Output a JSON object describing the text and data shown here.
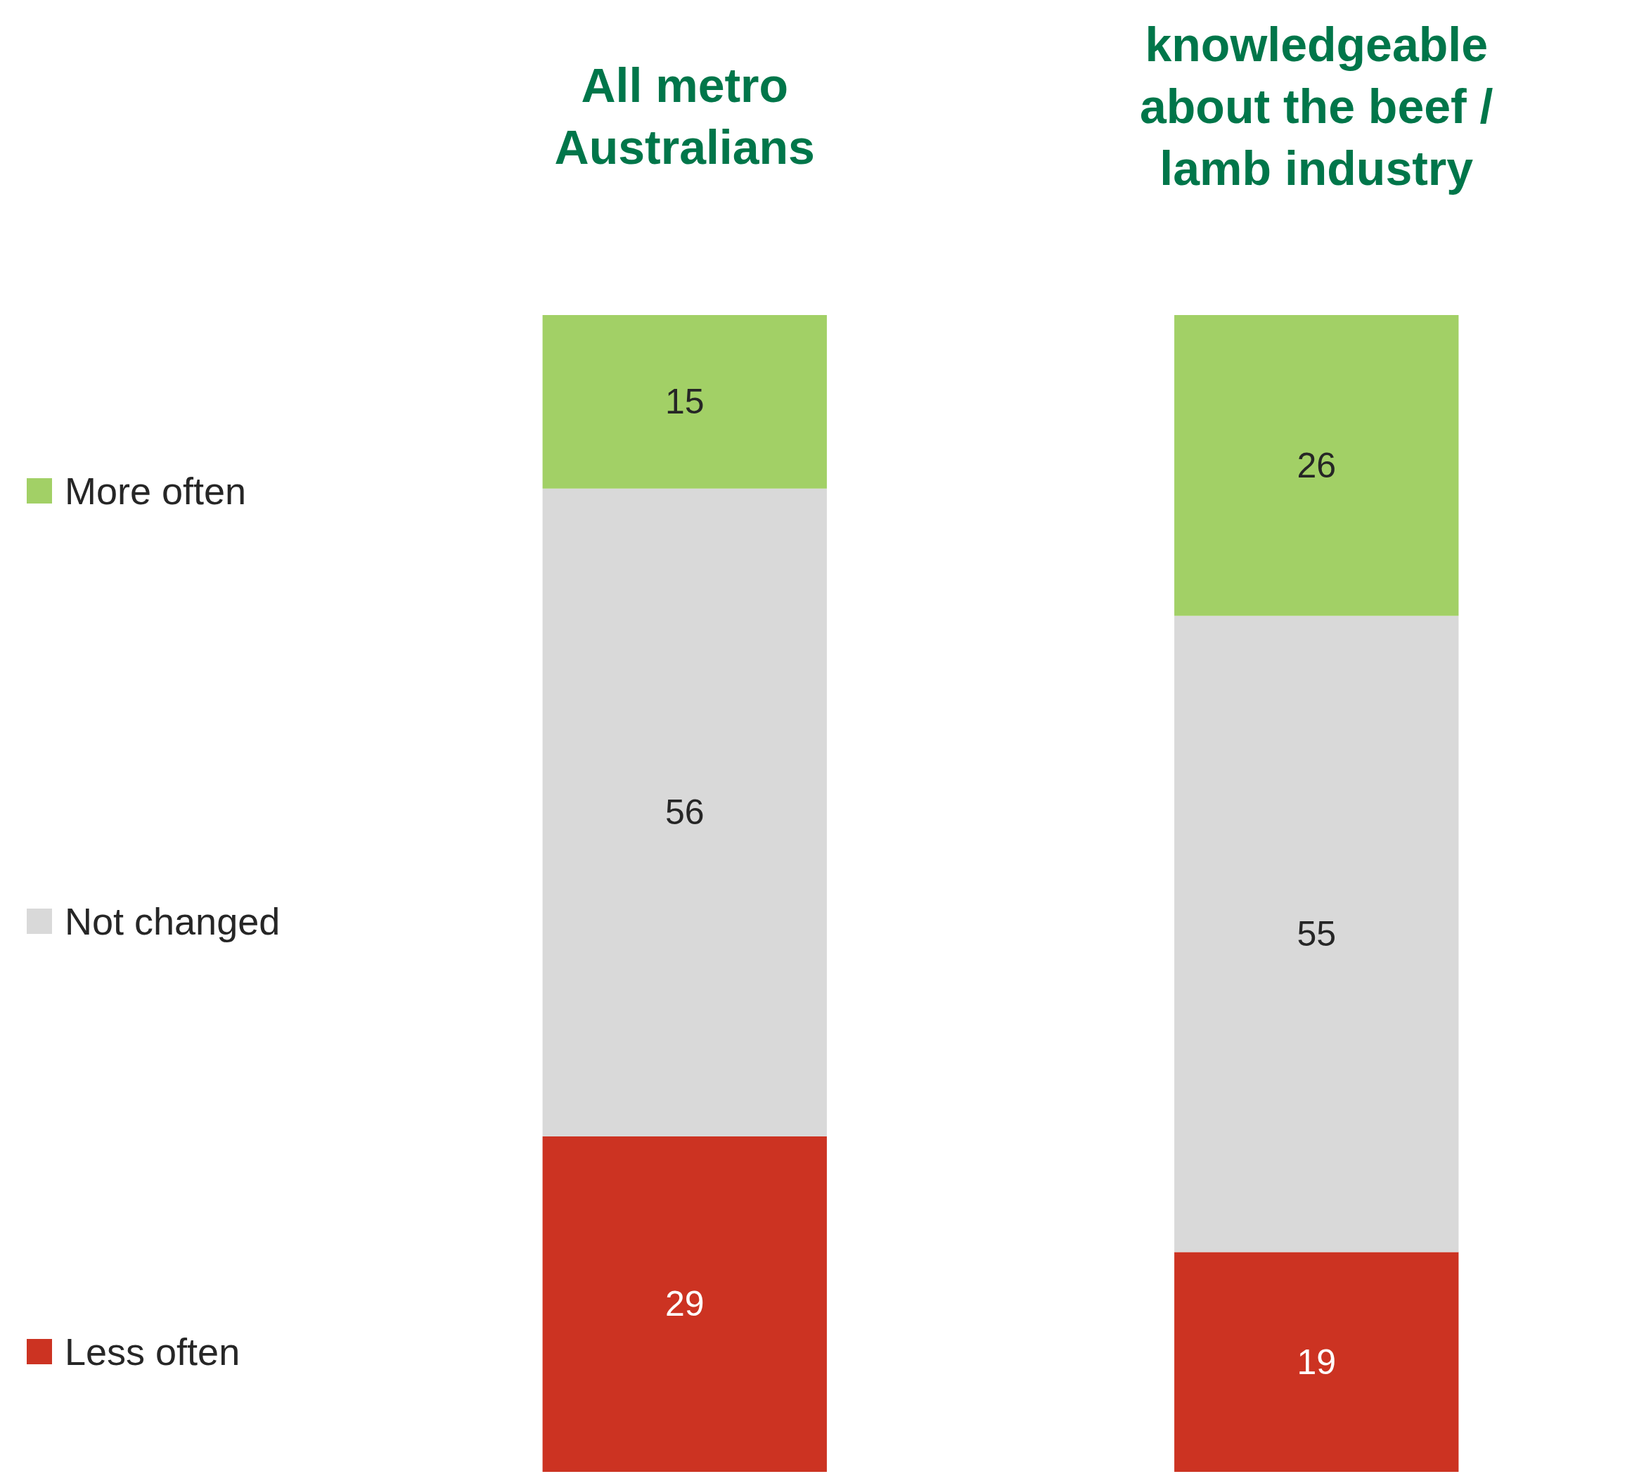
{
  "chart_data": {
    "type": "bar",
    "stacked": true,
    "categories": [
      "All metro Australians",
      "knowledgeable about the beef / lamb industry"
    ],
    "series": [
      {
        "name": "Less often",
        "color": "#cc3322",
        "values": [
          29,
          19
        ]
      },
      {
        "name": "Not changed",
        "color": "#d9d9d9",
        "values": [
          56,
          55
        ]
      },
      {
        "name": "More often",
        "color": "#a2d066",
        "values": [
          15,
          26
        ]
      }
    ],
    "ylim": [
      0,
      100
    ],
    "tick_labels": "x",
    "data_labels": true,
    "legend": "left"
  }
}
